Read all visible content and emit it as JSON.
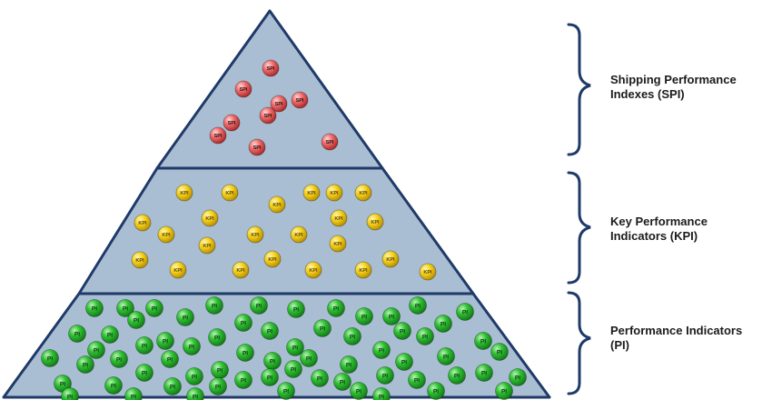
{
  "colors": {
    "tier_fill": "#a9bed3",
    "outline": "#1f3a68",
    "bracket": "#1f3a68",
    "spi_ball": "#e85a5a",
    "kpi_ball": "#f2cc16",
    "pi_ball": "#27b22e"
  },
  "tiers": [
    {
      "id": "spi",
      "label": "Shipping Performance\nIndexes (SPI)",
      "ball_text": "SPI",
      "ball_color": "#e85a5a",
      "ball_count": 9
    },
    {
      "id": "kpi",
      "label": "Key Performance\nIndicators (KPI)",
      "ball_text": "KPI",
      "ball_color": "#f2cc16",
      "ball_count": 23
    },
    {
      "id": "pi",
      "label": "Performance Indicators\n(PI)",
      "ball_text": "PI",
      "ball_color": "#27b22e",
      "ball_count": 66
    }
  ]
}
